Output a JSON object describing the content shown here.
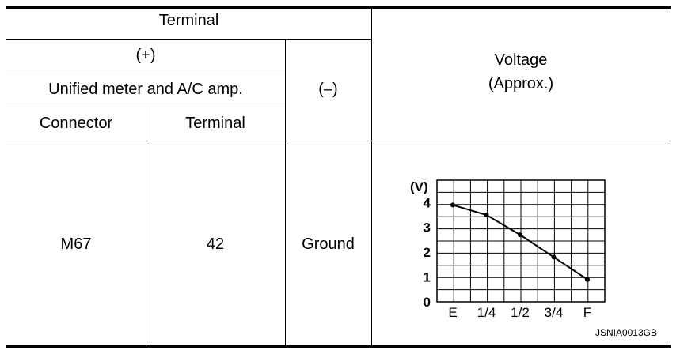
{
  "table": {
    "header_terminal": "Terminal",
    "header_plus": "(+)",
    "header_unit": "Unified meter and A/C amp.",
    "header_minus": "(–)",
    "header_connector": "Connector",
    "header_terminal_sub": "Terminal",
    "header_voltage_line1": "Voltage",
    "header_voltage_line2": "(Approx.)",
    "row": {
      "connector": "M67",
      "terminal": "42",
      "minus": "Ground"
    }
  },
  "figure_code": "JSNIA0013GB",
  "chart_data": {
    "type": "line",
    "ylabel": "(V)",
    "xlabel": "",
    "categories": [
      "E",
      "1/4",
      "1/2",
      "3/4",
      "F"
    ],
    "yticks": [
      "0",
      "1",
      "2",
      "3",
      "4"
    ],
    "ylim": [
      0,
      4.9
    ],
    "grid": true,
    "series": [
      {
        "values": [
          3.9,
          3.5,
          2.7,
          1.8,
          0.9
        ]
      }
    ]
  }
}
